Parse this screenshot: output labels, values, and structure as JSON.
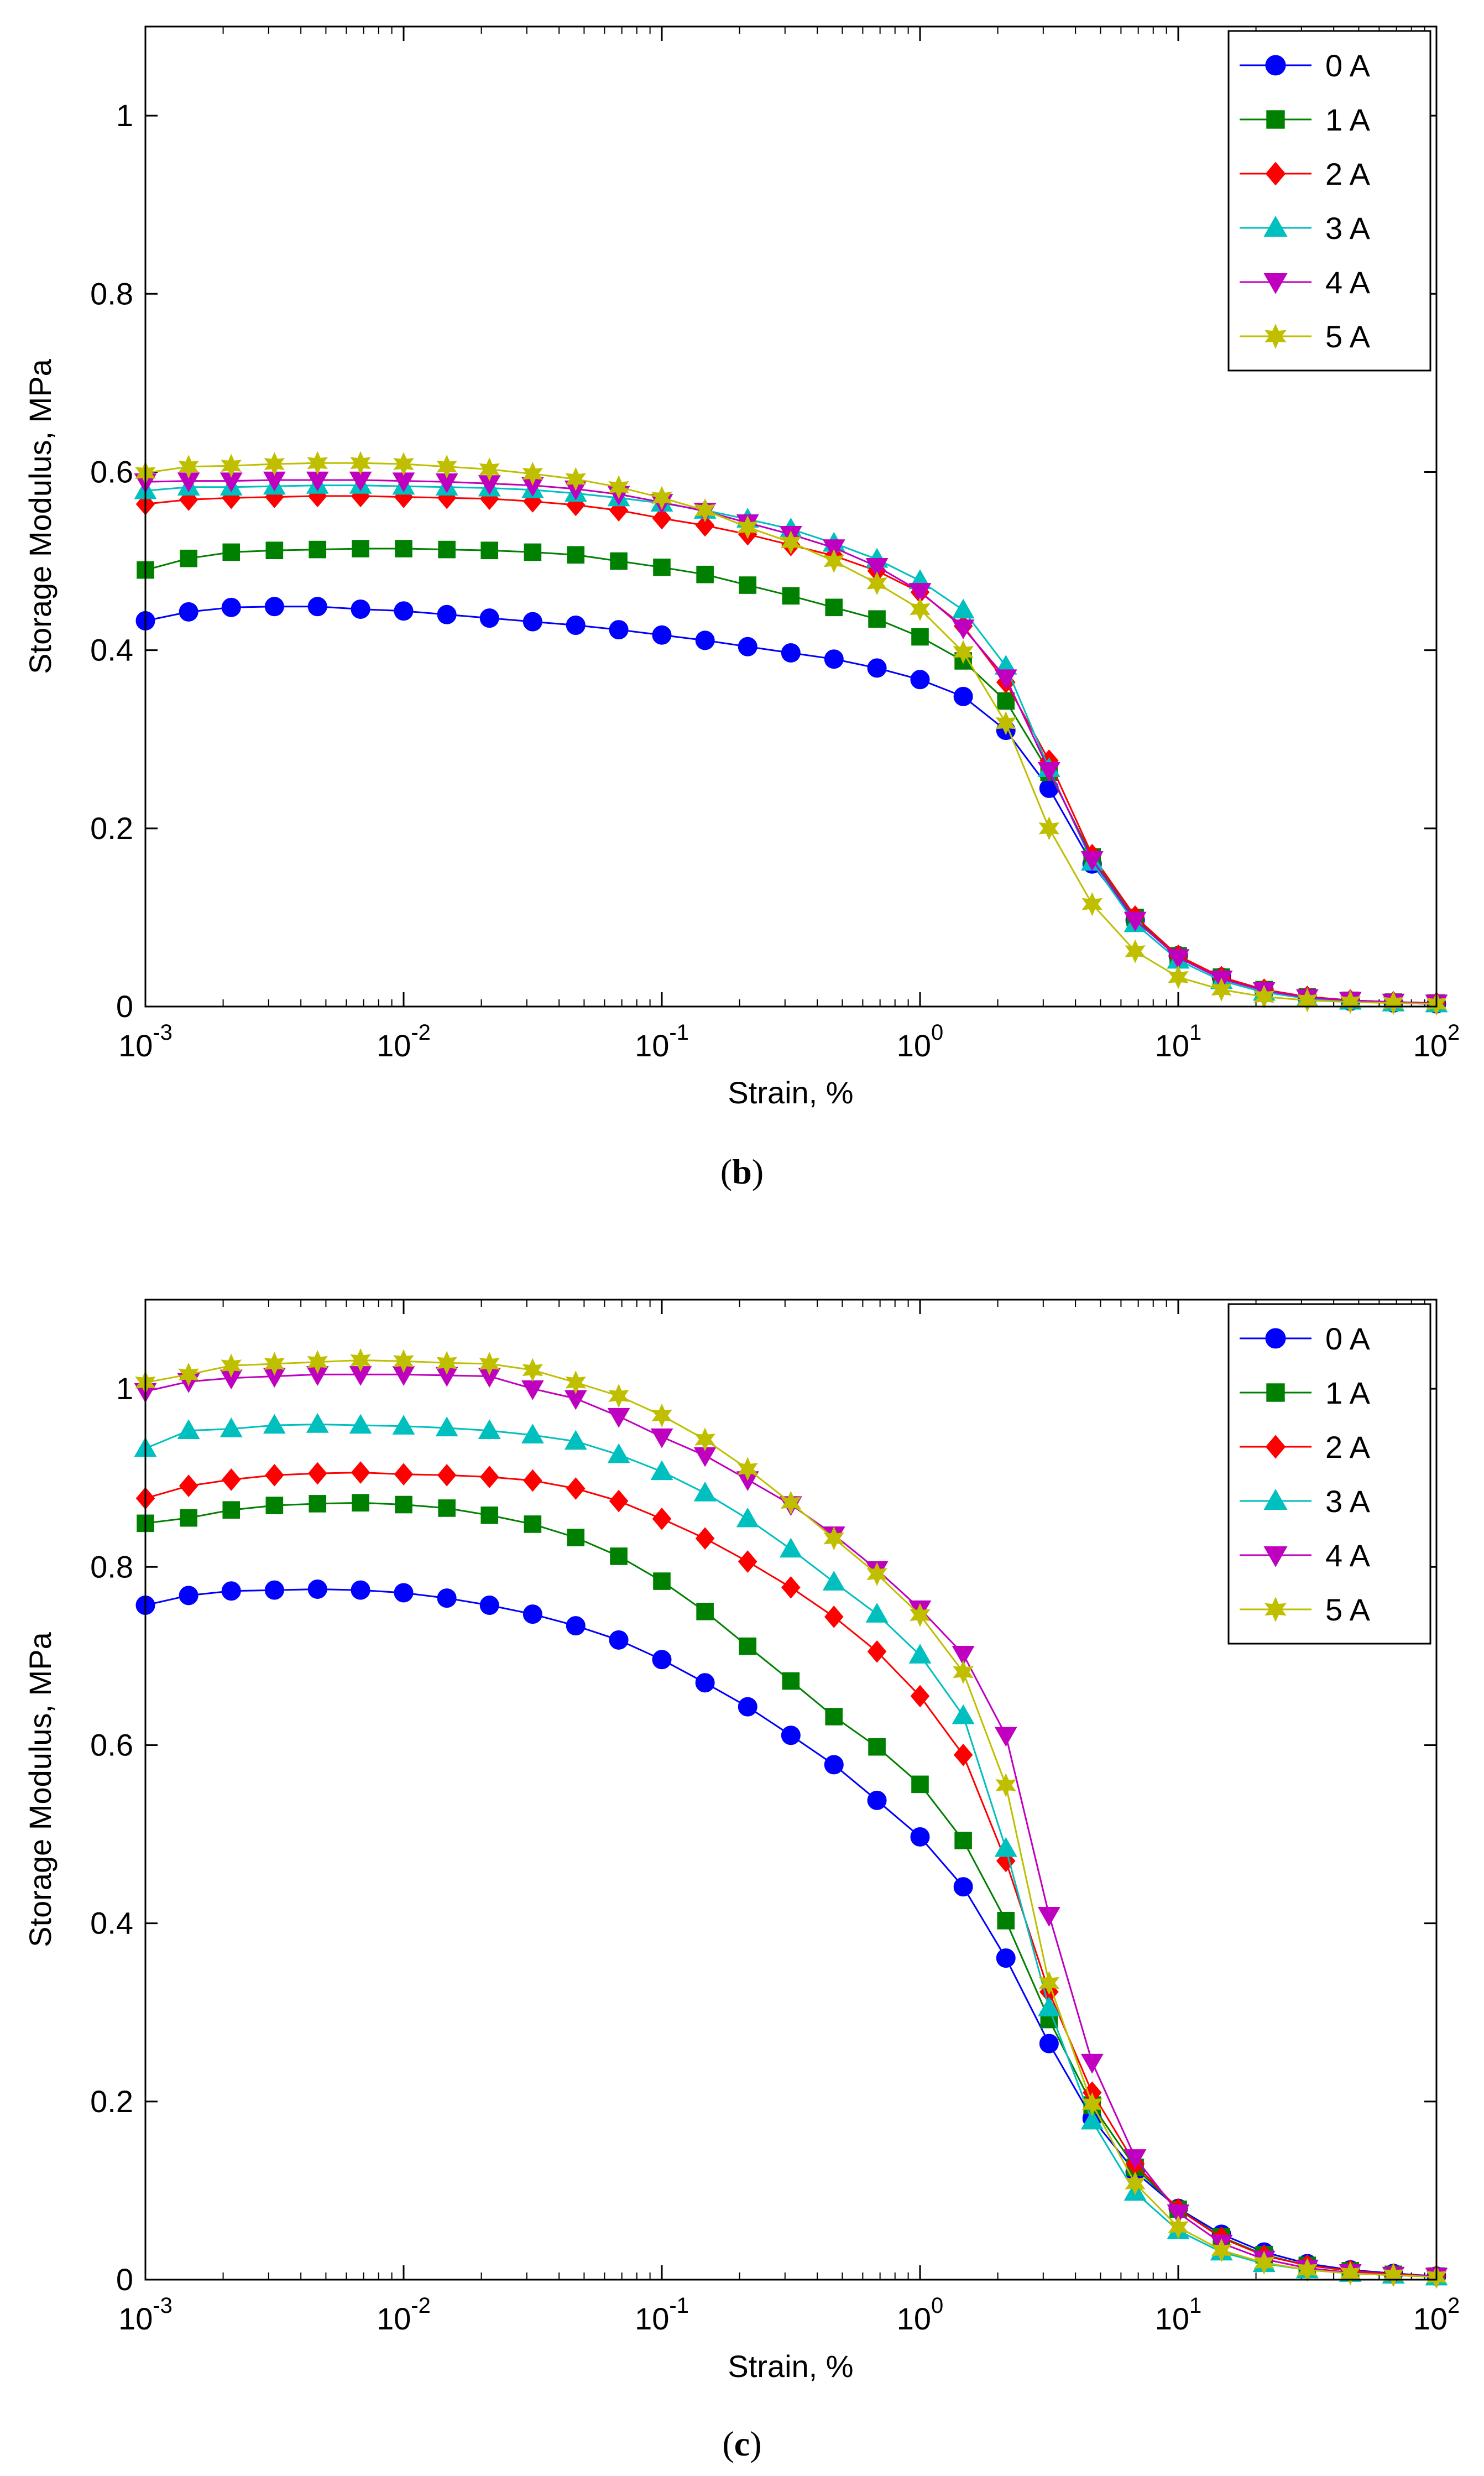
{
  "figure": {
    "colors": {
      "0 A": "#0000ff",
      "1 A": "#008000",
      "2 A": "#ff0000",
      "3 A": "#00bfbf",
      "4 A": "#bf00bf",
      "5 A": "#bfbf00"
    },
    "markers": {
      "0 A": "circle",
      "1 A": "square",
      "2 A": "diamond",
      "3 A": "triangle-up",
      "4 A": "triangle-down",
      "5 A": "hexagram"
    }
  },
  "chart_data": [
    {
      "panel": "b",
      "type": "line",
      "title": "",
      "xlabel": "Strain, %",
      "ylabel": "Storage Modulus, MPa",
      "xscale": "log",
      "xlim": [
        0.001,
        100
      ],
      "ylim": [
        0,
        1.1
      ],
      "grid": false,
      "legend_position": "top-right",
      "x_ticks": [
        {
          "value": 0.001,
          "base": "10",
          "exp": "-3"
        },
        {
          "value": 0.01,
          "base": "10",
          "exp": "-2"
        },
        {
          "value": 0.1,
          "base": "10",
          "exp": "-1"
        },
        {
          "value": 1,
          "base": "10",
          "exp": "0"
        },
        {
          "value": 10,
          "base": "10",
          "exp": "1"
        },
        {
          "value": 100,
          "base": "10",
          "exp": "2"
        }
      ],
      "y_ticks": [
        {
          "value": 0,
          "label": "0"
        },
        {
          "value": 0.2,
          "label": "0.2"
        },
        {
          "value": 0.4,
          "label": "0.4"
        },
        {
          "value": 0.6,
          "label": "0.6"
        },
        {
          "value": 0.8,
          "label": "0.8"
        },
        {
          "value": 1.0,
          "label": "1"
        }
      ],
      "caption_letter": "b",
      "x": [
        0.001,
        0.00147,
        0.00215,
        0.00316,
        0.00464,
        0.00681,
        0.01,
        0.0147,
        0.0215,
        0.0316,
        0.0464,
        0.0681,
        0.1,
        0.147,
        0.215,
        0.316,
        0.464,
        0.681,
        1.0,
        1.47,
        2.15,
        3.16,
        4.64,
        6.81,
        10.0,
        14.7,
        21.5,
        31.6,
        46.4,
        68.1,
        100
      ],
      "series": [
        {
          "name": "0 A",
          "values": [
            0.433,
            0.443,
            0.448,
            0.449,
            0.449,
            0.446,
            0.444,
            0.44,
            0.436,
            0.432,
            0.428,
            0.423,
            0.417,
            0.411,
            0.404,
            0.397,
            0.39,
            0.38,
            0.367,
            0.348,
            0.31,
            0.245,
            0.16,
            0.097,
            0.057,
            0.033,
            0.018,
            0.01,
            0.006,
            0.004,
            0.003
          ]
        },
        {
          "name": "1 A",
          "values": [
            0.49,
            0.503,
            0.51,
            0.512,
            0.513,
            0.514,
            0.514,
            0.513,
            0.512,
            0.51,
            0.507,
            0.5,
            0.493,
            0.485,
            0.473,
            0.461,
            0.448,
            0.435,
            0.415,
            0.388,
            0.343,
            0.263,
            0.168,
            0.1,
            0.057,
            0.033,
            0.019,
            0.011,
            0.007,
            0.005,
            0.004
          ]
        },
        {
          "name": "2 A",
          "values": [
            0.564,
            0.569,
            0.571,
            0.572,
            0.573,
            0.573,
            0.572,
            0.571,
            0.57,
            0.567,
            0.563,
            0.557,
            0.548,
            0.54,
            0.53,
            0.518,
            0.506,
            0.489,
            0.465,
            0.427,
            0.364,
            0.276,
            0.17,
            0.101,
            0.057,
            0.033,
            0.019,
            0.011,
            0.007,
            0.005,
            0.004
          ]
        },
        {
          "name": "3 A",
          "values": [
            0.579,
            0.583,
            0.583,
            0.584,
            0.585,
            0.585,
            0.584,
            0.583,
            0.582,
            0.58,
            0.576,
            0.571,
            0.565,
            0.557,
            0.547,
            0.536,
            0.52,
            0.502,
            0.478,
            0.445,
            0.382,
            0.267,
            0.162,
            0.093,
            0.052,
            0.029,
            0.016,
            0.009,
            0.006,
            0.004,
            0.003
          ]
        },
        {
          "name": "4 A",
          "values": [
            0.589,
            0.59,
            0.59,
            0.591,
            0.591,
            0.591,
            0.59,
            0.589,
            0.587,
            0.585,
            0.581,
            0.575,
            0.566,
            0.556,
            0.543,
            0.53,
            0.515,
            0.494,
            0.466,
            0.425,
            0.369,
            0.265,
            0.165,
            0.097,
            0.055,
            0.031,
            0.018,
            0.01,
            0.007,
            0.005,
            0.004
          ]
        },
        {
          "name": "5 A",
          "values": [
            0.599,
            0.606,
            0.607,
            0.609,
            0.61,
            0.61,
            0.609,
            0.606,
            0.603,
            0.598,
            0.592,
            0.583,
            0.571,
            0.557,
            0.538,
            0.521,
            0.5,
            0.475,
            0.446,
            0.398,
            0.318,
            0.2,
            0.115,
            0.062,
            0.033,
            0.019,
            0.011,
            0.007,
            0.005,
            0.004,
            0.003
          ]
        }
      ]
    },
    {
      "panel": "c",
      "type": "line",
      "title": "",
      "xlabel": "Strain, %",
      "ylabel": "Storage Modulus, MPa",
      "xscale": "log",
      "xlim": [
        0.001,
        100
      ],
      "ylim": [
        0,
        1.1
      ],
      "grid": false,
      "legend_position": "top-right",
      "x_ticks": [
        {
          "value": 0.001,
          "base": "10",
          "exp": "-3"
        },
        {
          "value": 0.01,
          "base": "10",
          "exp": "-2"
        },
        {
          "value": 0.1,
          "base": "10",
          "exp": "-1"
        },
        {
          "value": 1,
          "base": "10",
          "exp": "0"
        },
        {
          "value": 10,
          "base": "10",
          "exp": "1"
        },
        {
          "value": 100,
          "base": "10",
          "exp": "2"
        }
      ],
      "y_ticks": [
        {
          "value": 0,
          "label": "0"
        },
        {
          "value": 0.2,
          "label": "0.2"
        },
        {
          "value": 0.4,
          "label": "0.4"
        },
        {
          "value": 0.6,
          "label": "0.6"
        },
        {
          "value": 0.8,
          "label": "0.8"
        },
        {
          "value": 1.0,
          "label": "1"
        }
      ],
      "caption_letter": "c",
      "x": [
        0.001,
        0.00147,
        0.00215,
        0.00316,
        0.00464,
        0.00681,
        0.01,
        0.0147,
        0.0215,
        0.0316,
        0.0464,
        0.0681,
        0.1,
        0.147,
        0.215,
        0.316,
        0.464,
        0.681,
        1.0,
        1.47,
        2.15,
        3.16,
        4.64,
        6.81,
        10.0,
        14.7,
        21.5,
        31.6,
        46.4,
        68.1,
        100
      ],
      "series": [
        {
          "name": "0 A",
          "values": [
            0.757,
            0.768,
            0.773,
            0.774,
            0.775,
            0.774,
            0.771,
            0.765,
            0.757,
            0.747,
            0.734,
            0.718,
            0.696,
            0.67,
            0.643,
            0.611,
            0.578,
            0.538,
            0.497,
            0.441,
            0.361,
            0.265,
            0.181,
            0.121,
            0.08,
            0.051,
            0.031,
            0.018,
            0.011,
            0.007,
            0.004
          ]
        },
        {
          "name": "1 A",
          "values": [
            0.849,
            0.855,
            0.864,
            0.869,
            0.871,
            0.872,
            0.87,
            0.866,
            0.858,
            0.848,
            0.833,
            0.812,
            0.784,
            0.75,
            0.711,
            0.672,
            0.632,
            0.598,
            0.556,
            0.493,
            0.403,
            0.292,
            0.196,
            0.126,
            0.079,
            0.048,
            0.028,
            0.016,
            0.01,
            0.006,
            0.004
          ]
        },
        {
          "name": "2 A",
          "values": [
            0.877,
            0.891,
            0.898,
            0.903,
            0.905,
            0.906,
            0.904,
            0.903,
            0.901,
            0.897,
            0.888,
            0.874,
            0.854,
            0.832,
            0.806,
            0.777,
            0.744,
            0.705,
            0.655,
            0.589,
            0.47,
            0.323,
            0.21,
            0.13,
            0.079,
            0.047,
            0.027,
            0.016,
            0.01,
            0.006,
            0.004
          ]
        },
        {
          "name": "3 A",
          "values": [
            0.933,
            0.953,
            0.955,
            0.959,
            0.96,
            0.959,
            0.958,
            0.956,
            0.953,
            0.948,
            0.941,
            0.926,
            0.907,
            0.883,
            0.854,
            0.82,
            0.783,
            0.747,
            0.701,
            0.633,
            0.484,
            0.305,
            0.178,
            0.098,
            0.055,
            0.031,
            0.018,
            0.011,
            0.007,
            0.005,
            0.003
          ]
        },
        {
          "name": "4 A",
          "values": [
            0.997,
            1.008,
            1.012,
            1.014,
            1.016,
            1.016,
            1.016,
            1.015,
            1.014,
            1.0,
            0.989,
            0.969,
            0.946,
            0.925,
            0.898,
            0.87,
            0.836,
            0.797,
            0.753,
            0.702,
            0.611,
            0.409,
            0.244,
            0.137,
            0.075,
            0.041,
            0.023,
            0.013,
            0.008,
            0.005,
            0.004
          ]
        },
        {
          "name": "5 A",
          "values": [
            1.007,
            1.016,
            1.026,
            1.028,
            1.03,
            1.032,
            1.031,
            1.029,
            1.028,
            1.021,
            1.007,
            0.992,
            0.97,
            0.943,
            0.91,
            0.872,
            0.832,
            0.792,
            0.746,
            0.682,
            0.555,
            0.333,
            0.197,
            0.108,
            0.059,
            0.033,
            0.019,
            0.011,
            0.007,
            0.005,
            0.003
          ]
        }
      ]
    }
  ]
}
